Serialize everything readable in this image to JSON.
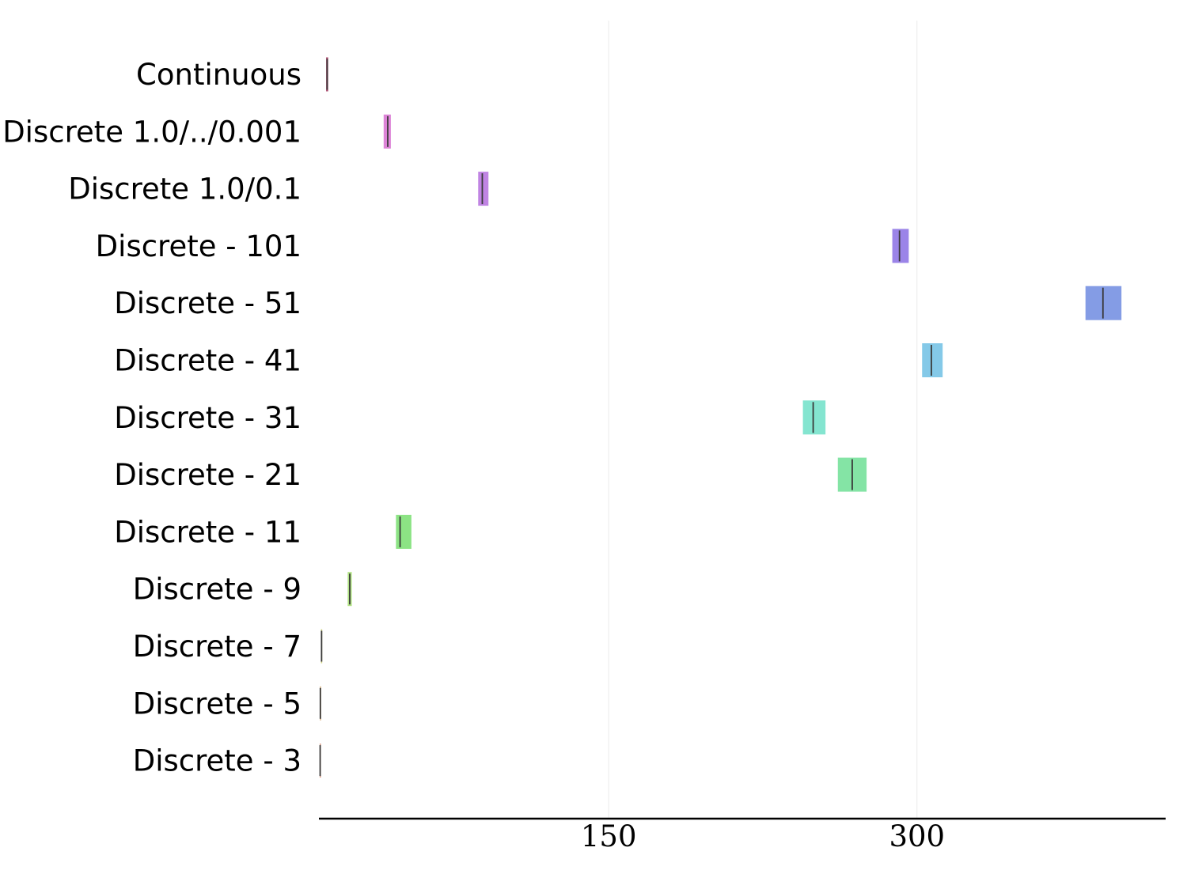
{
  "chart_data": {
    "type": "box",
    "orientation": "horizontal",
    "title": "",
    "xlabel": "",
    "ylabel": "",
    "xlim": [
      9,
      421
    ],
    "xticks": [
      150,
      300
    ],
    "grid": "vertical",
    "legend": "none",
    "categories": [
      "Continuous",
      "Discrete 1.0/../0.001",
      "Discrete 1.0/0.1",
      "Discrete - 101",
      "Discrete - 51",
      "Discrete - 41",
      "Discrete - 31",
      "Discrete - 21",
      "Discrete - 11",
      "Discrete - 9",
      "Discrete - 7",
      "Discrete - 5",
      "Discrete - 3"
    ],
    "boxes": [
      {
        "q1": 12.5,
        "median": 13.0,
        "q3": 13.5,
        "color": "#9b2b55"
      },
      {
        "q1": 40.5,
        "median": 42.5,
        "q3": 44.0,
        "color": "#d76fd0"
      },
      {
        "q1": 86.5,
        "median": 88.5,
        "q3": 91.5,
        "color": "#b56fde"
      },
      {
        "q1": 288.0,
        "median": 291.5,
        "q3": 296.0,
        "color": "#8a6ee4"
      },
      {
        "q1": 382.0,
        "median": 390.5,
        "q3": 399.5,
        "color": "#6f8be0"
      },
      {
        "q1": 302.5,
        "median": 307.0,
        "q3": 312.5,
        "color": "#6fbfe4"
      },
      {
        "q1": 244.5,
        "median": 249.5,
        "q3": 255.5,
        "color": "#6fe0c8"
      },
      {
        "q1": 261.5,
        "median": 268.5,
        "q3": 275.5,
        "color": "#6fdf95"
      },
      {
        "q1": 46.5,
        "median": 48.5,
        "q3": 54.0,
        "color": "#78de6f"
      },
      {
        "q1": 23.0,
        "median": 24.0,
        "q3": 25.0,
        "color": "#a3dd6f"
      },
      {
        "q1": 10.0,
        "median": 10.3,
        "q3": 10.6,
        "color": "#c9cc6f"
      },
      {
        "q1": 9.5,
        "median": 9.7,
        "q3": 9.9,
        "color": "#d6a86f"
      },
      {
        "q1": 9.4,
        "median": 9.6,
        "q3": 9.8,
        "color": "#d48a6f"
      }
    ],
    "median_line_color": "#3a3a3a",
    "grid_color": "#ebebeb",
    "axis_color": "#000000"
  }
}
